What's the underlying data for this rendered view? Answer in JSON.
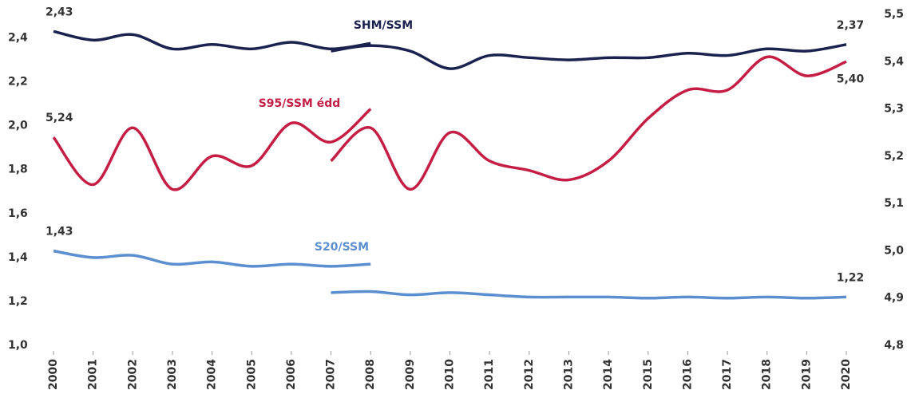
{
  "chart_data": {
    "type": "line",
    "categories": [
      "2000",
      "2001",
      "2002",
      "2003",
      "2004",
      "2005",
      "2006",
      "2007",
      "2008",
      "2009",
      "2010",
      "2011",
      "2012",
      "2013",
      "2014",
      "2015",
      "2016",
      "2017",
      "2018",
      "2019",
      "2020"
    ],
    "ylim": [
      1.0,
      2.5
    ],
    "yticks": [
      {
        "value": 1.0,
        "label": "1,0"
      },
      {
        "value": 1.2,
        "label": "1,2"
      },
      {
        "value": 1.4,
        "label": "1,4"
      },
      {
        "value": 1.6,
        "label": "1,6"
      },
      {
        "value": 1.8,
        "label": "1,8"
      },
      {
        "value": 2.0,
        "label": "2,0"
      },
      {
        "value": 2.2,
        "label": "2,2"
      },
      {
        "value": 2.4,
        "label": "2,4"
      }
    ],
    "y2lim": [
      4.8,
      5.5
    ],
    "y2ticks": [
      {
        "value": 4.8,
        "label": "4,8"
      },
      {
        "value": 4.9,
        "label": "4,9"
      },
      {
        "value": 5.0,
        "label": "5,0"
      },
      {
        "value": 5.1,
        "label": "5,1"
      },
      {
        "value": 5.2,
        "label": "5,2"
      },
      {
        "value": 5.3,
        "label": "5,3"
      },
      {
        "value": 5.4,
        "label": "5,4"
      },
      {
        "value": 5.5,
        "label": "5,5"
      }
    ],
    "series": [
      {
        "name": "SHM/SSM",
        "color": "#1b2250",
        "values": [
          2.43,
          2.39,
          2.415,
          2.35,
          2.37,
          2.35,
          2.38,
          2.35,
          2.375,
          null,
          null,
          null,
          null,
          null,
          null,
          null,
          null,
          null,
          null,
          null,
          null
        ],
        "value_labels": [
          "2,43",
          null,
          null,
          null,
          null,
          null,
          null,
          null,
          null,
          null,
          null,
          null,
          null,
          null,
          null,
          null,
          null,
          null,
          null,
          null,
          null
        ]
      },
      {
        "color": "#1b2250",
        "values": [
          null,
          null,
          null,
          null,
          null,
          null,
          null,
          2.34,
          2.365,
          2.34,
          2.26,
          2.32,
          2.31,
          2.3,
          2.31,
          2.31,
          2.33,
          2.32,
          2.35,
          2.34,
          2.37
        ],
        "value_labels": [
          null,
          null,
          null,
          null,
          null,
          null,
          null,
          null,
          null,
          null,
          null,
          null,
          null,
          null,
          null,
          null,
          null,
          null,
          null,
          null,
          "2,37"
        ]
      },
      {
        "name": "S95/SSM édd",
        "color": "#c41e45",
        "axis": "y2",
        "values": [
          5.24,
          5.14,
          5.26,
          5.13,
          5.2,
          5.18,
          5.27,
          5.23,
          5.3,
          null,
          null,
          null,
          null,
          null,
          null,
          null,
          null,
          null,
          null,
          null,
          null
        ],
        "value_labels": [
          "5,24",
          null,
          null,
          null,
          null,
          null,
          null,
          null,
          null,
          null,
          null,
          null,
          null,
          null,
          null,
          null,
          null,
          null,
          null,
          null,
          null
        ]
      },
      {
        "color": "#c41e45",
        "axis": "y2",
        "values": [
          null,
          null,
          null,
          null,
          null,
          null,
          null,
          5.19,
          5.26,
          5.13,
          5.25,
          5.19,
          5.17,
          5.15,
          5.19,
          5.28,
          5.34,
          5.34,
          5.41,
          5.37,
          5.4
        ],
        "value_labels": [
          null,
          null,
          null,
          null,
          null,
          null,
          null,
          null,
          null,
          null,
          null,
          null,
          null,
          null,
          null,
          null,
          null,
          null,
          null,
          null,
          "5,40"
        ]
      },
      {
        "name": "S20/SSM",
        "color": "#5b8fd0",
        "values": [
          1.43,
          1.4,
          1.41,
          1.37,
          1.38,
          1.36,
          1.37,
          1.36,
          1.37,
          null,
          null,
          null,
          null,
          null,
          null,
          null,
          null,
          null,
          null,
          null,
          null
        ],
        "value_labels": [
          "1,43",
          null,
          null,
          null,
          null,
          null,
          null,
          null,
          null,
          null,
          null,
          null,
          null,
          null,
          null,
          null,
          null,
          null,
          null,
          null,
          null
        ]
      },
      {
        "color": "#5b8fd0",
        "values": [
          null,
          null,
          null,
          null,
          null,
          null,
          null,
          1.24,
          1.245,
          1.23,
          1.24,
          1.23,
          1.22,
          1.22,
          1.22,
          1.215,
          1.22,
          1.215,
          1.22,
          1.215,
          1.22
        ],
        "value_labels": [
          null,
          null,
          null,
          null,
          null,
          null,
          null,
          null,
          null,
          null,
          null,
          null,
          null,
          null,
          null,
          null,
          null,
          null,
          null,
          null,
          "1,22"
        ]
      }
    ]
  }
}
